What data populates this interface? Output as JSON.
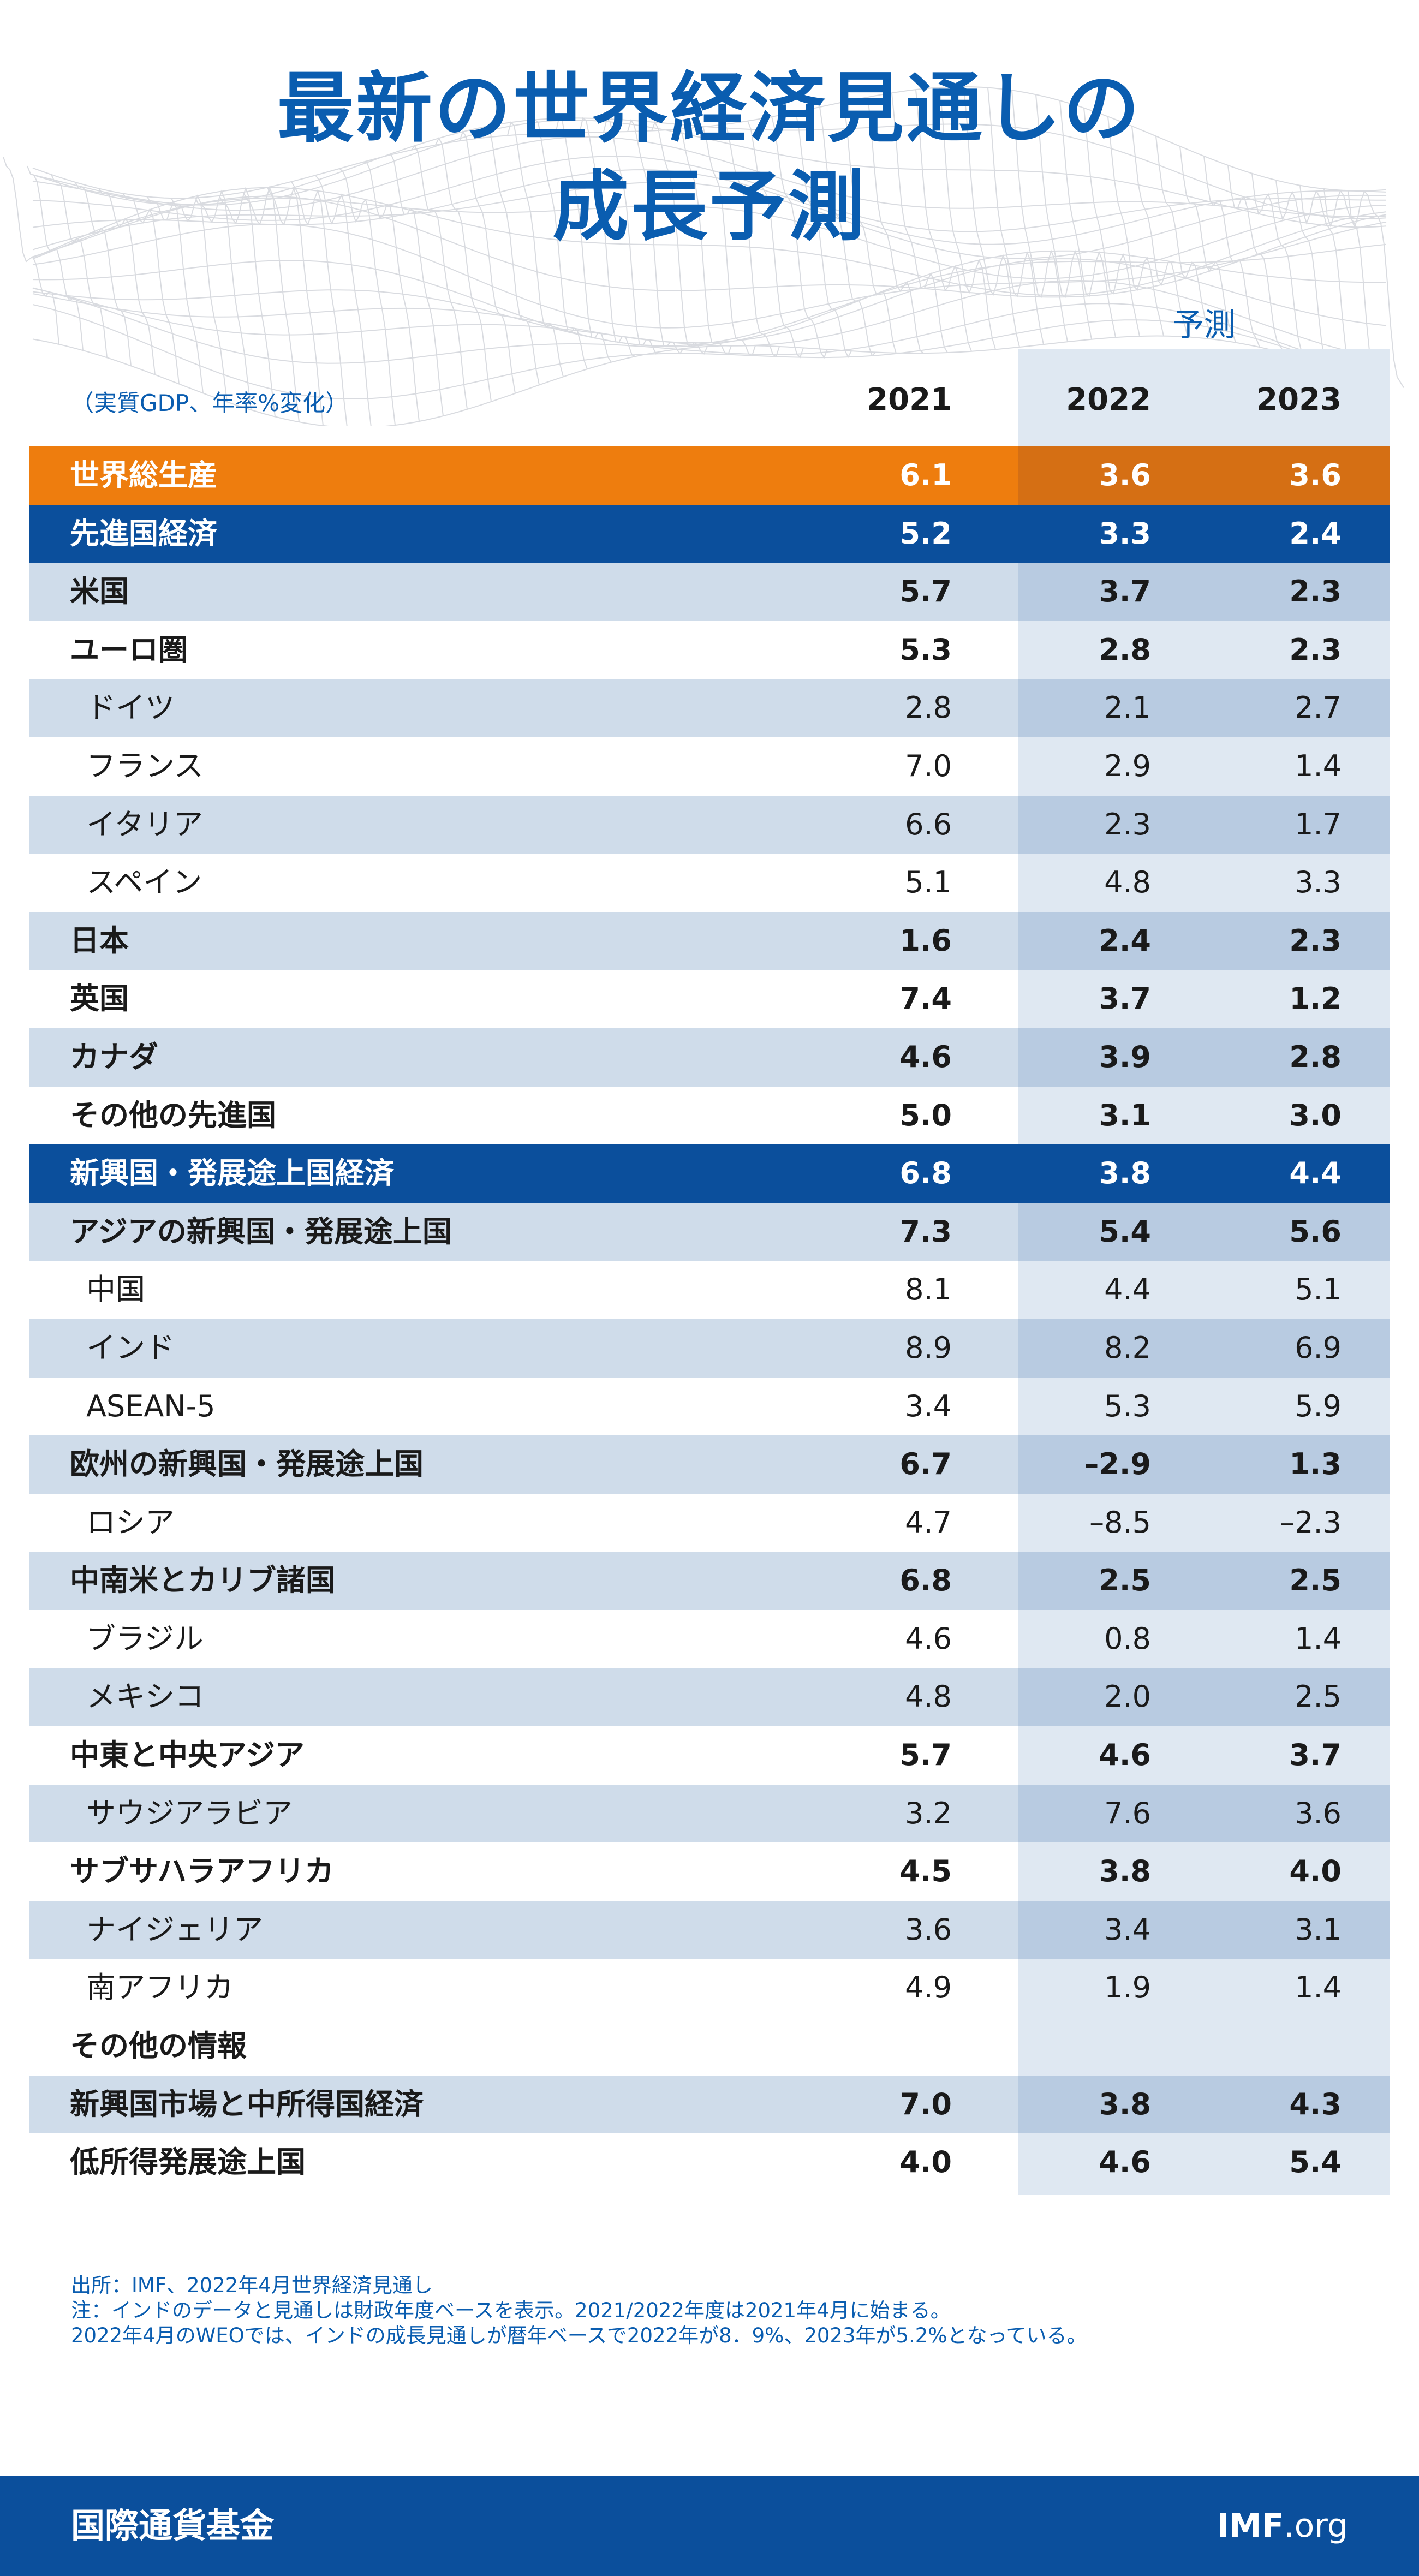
{
  "title": {
    "line1": "最新の世界経済見通しの",
    "line2": "成長予測"
  },
  "header": {
    "forecast_label": "予測",
    "unit_label": "（実質GDP、年率%変化）",
    "years": [
      "2021",
      "2022",
      "2023"
    ]
  },
  "rows": [
    {
      "label": "世界総生産",
      "style": "orange",
      "indent": false,
      "bold": true,
      "values": [
        "6.1",
        "3.6",
        "3.6"
      ]
    },
    {
      "label": "先進国経済",
      "style": "navy",
      "indent": false,
      "bold": true,
      "values": [
        "5.2",
        "3.3",
        "2.4"
      ]
    },
    {
      "label": "米国",
      "style": "shade",
      "indent": false,
      "bold": true,
      "values": [
        "5.7",
        "3.7",
        "2.3"
      ]
    },
    {
      "label": "ユーロ圏",
      "style": "plain",
      "indent": false,
      "bold": true,
      "values": [
        "5.3",
        "2.8",
        "2.3"
      ]
    },
    {
      "label": "ドイツ",
      "style": "shade",
      "indent": true,
      "bold": false,
      "values": [
        "2.8",
        "2.1",
        "2.7"
      ]
    },
    {
      "label": "フランス",
      "style": "plain",
      "indent": true,
      "bold": false,
      "values": [
        "7.0",
        "2.9",
        "1.4"
      ]
    },
    {
      "label": "イタリア",
      "style": "shade",
      "indent": true,
      "bold": false,
      "values": [
        "6.6",
        "2.3",
        "1.7"
      ]
    },
    {
      "label": "スペイン",
      "style": "plain",
      "indent": true,
      "bold": false,
      "values": [
        "5.1",
        "4.8",
        "3.3"
      ]
    },
    {
      "label": "日本",
      "style": "shade",
      "indent": false,
      "bold": true,
      "values": [
        "1.6",
        "2.4",
        "2.3"
      ]
    },
    {
      "label": "英国",
      "style": "plain",
      "indent": false,
      "bold": true,
      "values": [
        "7.4",
        "3.7",
        "1.2"
      ]
    },
    {
      "label": "カナダ",
      "style": "shade",
      "indent": false,
      "bold": true,
      "values": [
        "4.6",
        "3.9",
        "2.8"
      ]
    },
    {
      "label": "その他の先進国",
      "style": "plain",
      "indent": false,
      "bold": true,
      "values": [
        "5.0",
        "3.1",
        "3.0"
      ]
    },
    {
      "label": "新興国・発展途上国経済",
      "style": "navy",
      "indent": false,
      "bold": true,
      "values": [
        "6.8",
        "3.8",
        "4.4"
      ]
    },
    {
      "label": "アジアの新興国・発展途上国",
      "style": "shade",
      "indent": false,
      "bold": true,
      "values": [
        "7.3",
        "5.4",
        "5.6"
      ]
    },
    {
      "label": "中国",
      "style": "plain",
      "indent": true,
      "bold": false,
      "values": [
        "8.1",
        "4.4",
        "5.1"
      ]
    },
    {
      "label": "インド",
      "style": "shade",
      "indent": true,
      "bold": false,
      "values": [
        "8.9",
        "8.2",
        "6.9"
      ]
    },
    {
      "label": "ASEAN-5",
      "style": "plain",
      "indent": true,
      "bold": false,
      "values": [
        "3.4",
        "5.3",
        "5.9"
      ]
    },
    {
      "label": "欧州の新興国・発展途上国",
      "style": "shade",
      "indent": false,
      "bold": true,
      "values": [
        "6.7",
        "–2.9",
        "1.3"
      ]
    },
    {
      "label": "ロシア",
      "style": "plain",
      "indent": true,
      "bold": false,
      "values": [
        "4.7",
        "–8.5",
        "–2.3"
      ]
    },
    {
      "label": "中南米とカリブ諸国",
      "style": "shade",
      "indent": false,
      "bold": true,
      "values": [
        "6.8",
        "2.5",
        "2.5"
      ]
    },
    {
      "label": "ブラジル",
      "style": "plain",
      "indent": true,
      "bold": false,
      "values": [
        "4.6",
        "0.8",
        "1.4"
      ]
    },
    {
      "label": "メキシコ",
      "style": "shade",
      "indent": true,
      "bold": false,
      "values": [
        "4.8",
        "2.0",
        "2.5"
      ]
    },
    {
      "label": "中東と中央アジア",
      "style": "plain",
      "indent": false,
      "bold": true,
      "values": [
        "5.7",
        "4.6",
        "3.7"
      ]
    },
    {
      "label": "サウジアラビア",
      "style": "shade",
      "indent": true,
      "bold": false,
      "values": [
        "3.2",
        "7.6",
        "3.6"
      ]
    },
    {
      "label": "サブサハラアフリカ",
      "style": "plain",
      "indent": false,
      "bold": true,
      "values": [
        "4.5",
        "3.8",
        "4.0"
      ]
    },
    {
      "label": "ナイジェリア",
      "style": "shade",
      "indent": true,
      "bold": false,
      "values": [
        "3.6",
        "3.4",
        "3.1"
      ]
    },
    {
      "label": "南アフリカ",
      "style": "plain",
      "indent": true,
      "bold": false,
      "values": [
        "4.9",
        "1.9",
        "1.4"
      ]
    },
    {
      "label": "その他の情報",
      "style": "plain",
      "indent": false,
      "bold": true,
      "values": [
        "",
        "",
        ""
      ]
    },
    {
      "label": "新興国市場と中所得国経済",
      "style": "shade",
      "indent": false,
      "bold": true,
      "values": [
        "7.0",
        "3.8",
        "4.3"
      ]
    },
    {
      "label": "低所得発展途上国",
      "style": "plain",
      "indent": false,
      "bold": true,
      "values": [
        "4.0",
        "4.6",
        "5.4"
      ]
    }
  ],
  "notes": {
    "line1": "出所：IMF、2022年4月世界経済見通し",
    "line2": "注：インドのデータと見通しは財政年度ベースを表示。2021/2022年度は2021年4月に始まる。",
    "line3": "2022年4月のWEOでは、インドの成長見通しが暦年ベースで2022年が8．9%、2023年が5.2%となっている。"
  },
  "footer": {
    "org_name": "国際通貨基金",
    "site_bold": "IMF",
    "site_rest": ".org"
  },
  "colors": {
    "brand_blue": "#0a5db0",
    "navy": "#0b4f9c",
    "orange": "#ee7d0e",
    "shade": "#cfdcea"
  }
}
